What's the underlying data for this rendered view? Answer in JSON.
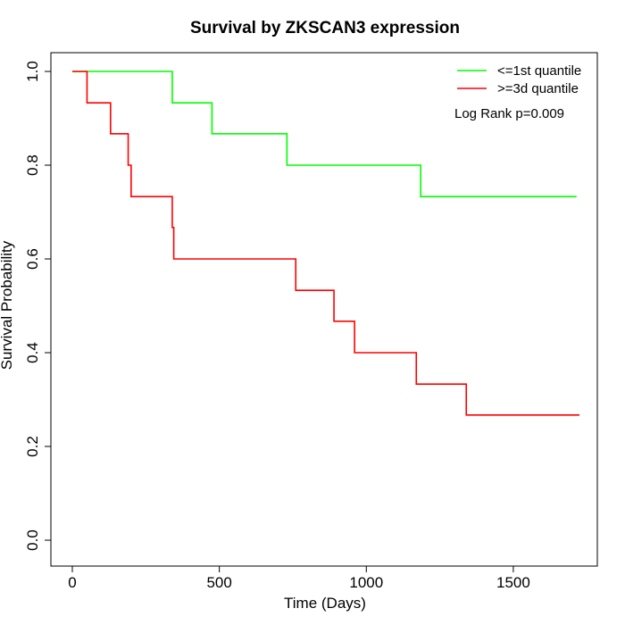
{
  "chart_data": {
    "type": "line",
    "step": true,
    "title": "Survival by ZKSCAN3 expression",
    "xlabel": "Time (Days)",
    "ylabel": "Survival Probability",
    "xlim": [
      0,
      1780
    ],
    "ylim": [
      0,
      1.0
    ],
    "xticks": [
      0,
      500,
      1000,
      1500
    ],
    "yticks": [
      0.0,
      0.2,
      0.4,
      0.6,
      0.8,
      1.0
    ],
    "xtick_labels": [
      "0",
      "500",
      "1000",
      "1500"
    ],
    "ytick_labels": [
      "0.0",
      "0.2",
      "0.4",
      "0.6",
      "0.8",
      "1.0"
    ],
    "grid": false,
    "legend_position": "top-right",
    "annotation": "Log Rank p=0.009",
    "series": [
      {
        "name": "<=1st quantile",
        "color": "#00ff00",
        "x": [
          0,
          340,
          475,
          730,
          1185,
          1715
        ],
        "y": [
          1.0,
          0.933,
          0.867,
          0.8,
          0.733,
          0.733
        ]
      },
      {
        "name": ">=3d quantile",
        "color": "#ff0000",
        "x": [
          0,
          50,
          130,
          190,
          200,
          340,
          345,
          760,
          890,
          960,
          1170,
          1340,
          1725
        ],
        "y": [
          1.0,
          0.933,
          0.867,
          0.8,
          0.733,
          0.667,
          0.6,
          0.533,
          0.467,
          0.4,
          0.333,
          0.267,
          0.267
        ]
      }
    ]
  }
}
